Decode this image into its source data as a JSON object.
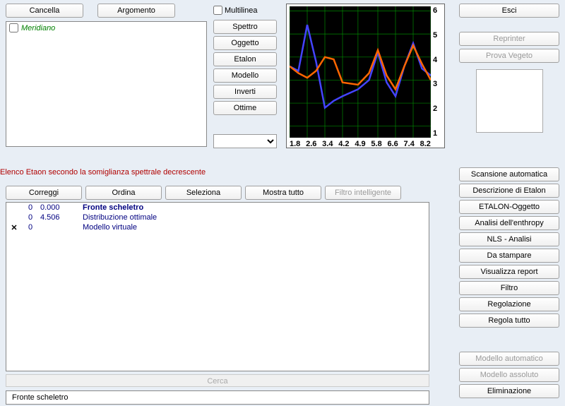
{
  "topbar": {
    "cancella": "Cancella",
    "argomento": "Argomento"
  },
  "multiline_label": "Multilinea",
  "listbox": {
    "item0": "Meridiano"
  },
  "midbtns": [
    "Spettro",
    "Oggetto",
    "Etalon",
    "Modello",
    "Inverti",
    "Ottime"
  ],
  "chart": {
    "type": "line",
    "background": "#000000",
    "grid_color": "#008800",
    "xlim": [
      1.8,
      8.2
    ],
    "ylim": [
      0.5,
      6.2
    ],
    "xticks": [
      "1.8",
      "2.6",
      "3.4",
      "4.2",
      "4.9",
      "5.8",
      "6.6",
      "7.4",
      "8.2"
    ],
    "yticks": [
      "6",
      "5",
      "4",
      "3",
      "2",
      "1"
    ],
    "series": [
      {
        "color": "#4444ff",
        "width": 2.5,
        "points": [
          [
            1.8,
            3.6
          ],
          [
            2.2,
            3.4
          ],
          [
            2.6,
            5.4
          ],
          [
            3.0,
            3.8
          ],
          [
            3.4,
            1.8
          ],
          [
            3.8,
            2.1
          ],
          [
            4.2,
            2.3
          ],
          [
            4.9,
            2.6
          ],
          [
            5.4,
            3.0
          ],
          [
            5.8,
            4.2
          ],
          [
            6.2,
            2.9
          ],
          [
            6.6,
            2.3
          ],
          [
            7.0,
            3.6
          ],
          [
            7.4,
            4.6
          ],
          [
            7.8,
            3.5
          ],
          [
            8.2,
            3.2
          ]
        ]
      },
      {
        "color": "#ff6600",
        "width": 2.5,
        "points": [
          [
            1.8,
            3.6
          ],
          [
            2.2,
            3.3
          ],
          [
            2.6,
            3.1
          ],
          [
            3.0,
            3.4
          ],
          [
            3.4,
            4.0
          ],
          [
            3.8,
            3.9
          ],
          [
            4.2,
            2.9
          ],
          [
            4.9,
            2.8
          ],
          [
            5.4,
            3.3
          ],
          [
            5.8,
            4.3
          ],
          [
            6.2,
            3.2
          ],
          [
            6.6,
            2.6
          ],
          [
            7.0,
            3.6
          ],
          [
            7.4,
            4.5
          ],
          [
            7.8,
            3.7
          ],
          [
            8.2,
            3.0
          ]
        ]
      }
    ]
  },
  "rightcol": {
    "esci": "Esci",
    "reprinter": "Reprinter",
    "prova": "Prova Vegeto"
  },
  "redtext": "Elenco Etaon secondo la somiglianza spettrale decrescente",
  "actions": [
    "Correggi",
    "Ordina",
    "Seleziona",
    "Mostra tutto",
    "Filtro intelligente"
  ],
  "table": {
    "rows": [
      {
        "mark": "",
        "a": "0",
        "b": "0.000",
        "c": "Fronte scheletro",
        "bold": true
      },
      {
        "mark": "",
        "a": "0",
        "b": "4.506",
        "c": "Distribuzione ottimale",
        "bold": false
      },
      {
        "mark": "✕",
        "a": "0",
        "b": "",
        "c": "Modello virtuale",
        "bold": false
      }
    ]
  },
  "search_placeholder": "Cerca",
  "footer": "Fronte scheletro",
  "rightcol2": [
    "Scansione automatica",
    "Descrizione di Etalon",
    "ETALON-Oggetto",
    "Analisi dell'enthropy",
    "NLS - Analisi",
    "Da stampare",
    "Visualizza report",
    "Filtro",
    "Regolazione",
    "Regola tutto"
  ],
  "rightcol2b": [
    "Modello automatico",
    "Modello assoluto",
    "Eliminazione"
  ]
}
